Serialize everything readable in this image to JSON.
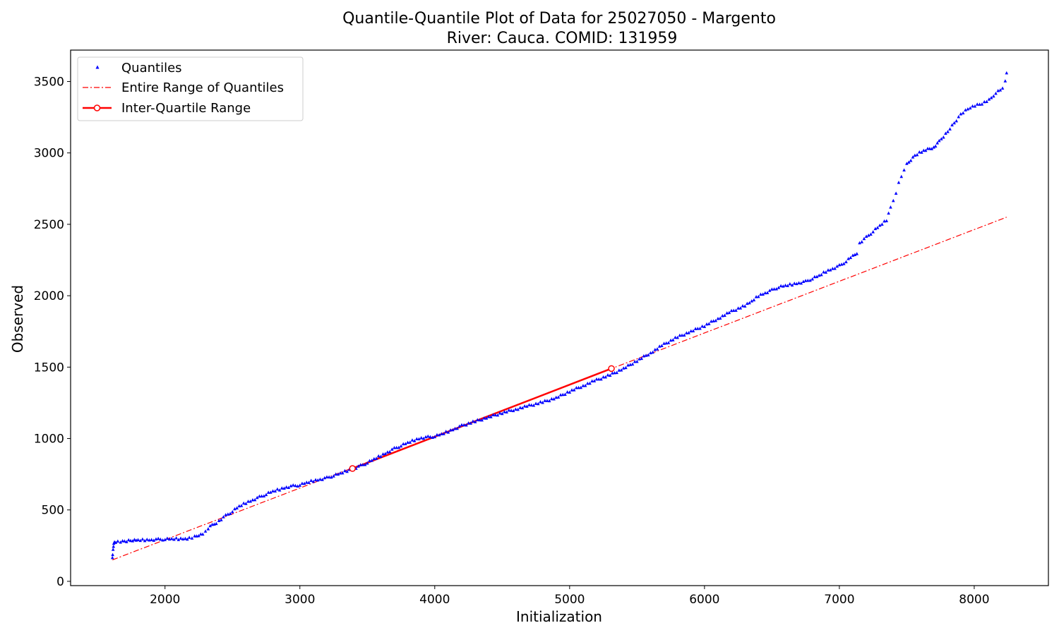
{
  "chart_data": {
    "type": "scatter",
    "title": [
      "Quantile-Quantile Plot of Data for 25027050 - Margento",
      "River: Cauca. COMID: 131959"
    ],
    "xlabel": "Initialization",
    "ylabel": "Observed",
    "xlim": [
      1300,
      8550
    ],
    "ylim": [
      -30,
      3720
    ],
    "xticks": [
      2000,
      3000,
      4000,
      5000,
      6000,
      7000,
      8000
    ],
    "yticks": [
      0,
      500,
      1000,
      1500,
      2000,
      2500,
      3000,
      3500
    ],
    "grid": false,
    "legend_position": "top-left",
    "colors": {
      "quantiles": "#0000ff",
      "range_line": "#ff0000",
      "iqr_line": "#ff0000",
      "iqr_marker_fill": "#ffffff"
    },
    "series": [
      {
        "name": "Quantiles",
        "kind": "points",
        "marker": "triangle",
        "x": [
          1610,
          1612,
          1615,
          1618,
          1620,
          1625,
          1635,
          1650,
          1670,
          1700,
          1730,
          1760,
          1800,
          1850,
          1900,
          1950,
          2000,
          2050,
          2100,
          2150,
          2180,
          2200,
          2220,
          2250,
          2280,
          2300,
          2320,
          2350,
          2380,
          2400,
          2450,
          2500,
          2550,
          2600,
          2650,
          2700,
          2750,
          2800,
          2850,
          2900,
          2950,
          3000,
          3050,
          3100,
          3150,
          3200,
          3250,
          3300,
          3350,
          3400,
          3450,
          3500,
          3550,
          3600,
          3650,
          3700,
          3750,
          3800,
          3850,
          3900,
          3950,
          4000,
          4050,
          4100,
          4150,
          4200,
          4300,
          4400,
          4500,
          4600,
          4700,
          4800,
          4900,
          5000,
          5100,
          5200,
          5300,
          5400,
          5500,
          5600,
          5700,
          5800,
          5900,
          6000,
          6100,
          6200,
          6300,
          6350,
          6400,
          6450,
          6500,
          6550,
          6600,
          6650,
          6700,
          6750,
          6800,
          6850,
          6900,
          6950,
          7000,
          7050,
          7100,
          7130,
          7150,
          7200,
          7250,
          7300,
          7350,
          7380,
          7400,
          7420,
          7440,
          7460,
          7480,
          7500,
          7530,
          7560,
          7610,
          7700,
          7740,
          7820,
          7900,
          7970,
          8040,
          8110,
          8160,
          8210,
          8230,
          8240
        ],
        "y": [
          160,
          190,
          220,
          250,
          265,
          270,
          275,
          278,
          280,
          282,
          284,
          286,
          288,
          290,
          292,
          294,
          295,
          296,
          298,
          300,
          301,
          305,
          315,
          325,
          330,
          345,
          370,
          395,
          410,
          425,
          460,
          490,
          525,
          550,
          570,
          590,
          610,
          630,
          645,
          660,
          668,
          675,
          690,
          705,
          715,
          725,
          740,
          755,
          775,
          790,
          810,
          830,
          855,
          880,
          905,
          930,
          950,
          970,
          990,
          1005,
          1010,
          1015,
          1030,
          1050,
          1070,
          1090,
          1120,
          1150,
          1180,
          1205,
          1230,
          1255,
          1285,
          1330,
          1370,
          1410,
          1445,
          1490,
          1545,
          1600,
          1660,
          1710,
          1750,
          1790,
          1840,
          1890,
          1930,
          1960,
          2000,
          2020,
          2040,
          2060,
          2070,
          2080,
          2090,
          2100,
          2120,
          2140,
          2170,
          2190,
          2210,
          2240,
          2280,
          2300,
          2370,
          2410,
          2450,
          2490,
          2530,
          2620,
          2660,
          2720,
          2790,
          2840,
          2880,
          2920,
          2950,
          2980,
          3010,
          3040,
          3080,
          3170,
          3270,
          3320,
          3340,
          3370,
          3420,
          3450,
          3510,
          3560
        ]
      },
      {
        "name": "Entire Range of Quantiles",
        "kind": "dashdot-line",
        "x": [
          1610,
          8240
        ],
        "y": [
          150,
          2550
        ]
      },
      {
        "name": "Inter-Quartile Range",
        "kind": "line-with-markers",
        "x": [
          3390,
          5310
        ],
        "y": [
          790,
          1490
        ]
      }
    ]
  }
}
